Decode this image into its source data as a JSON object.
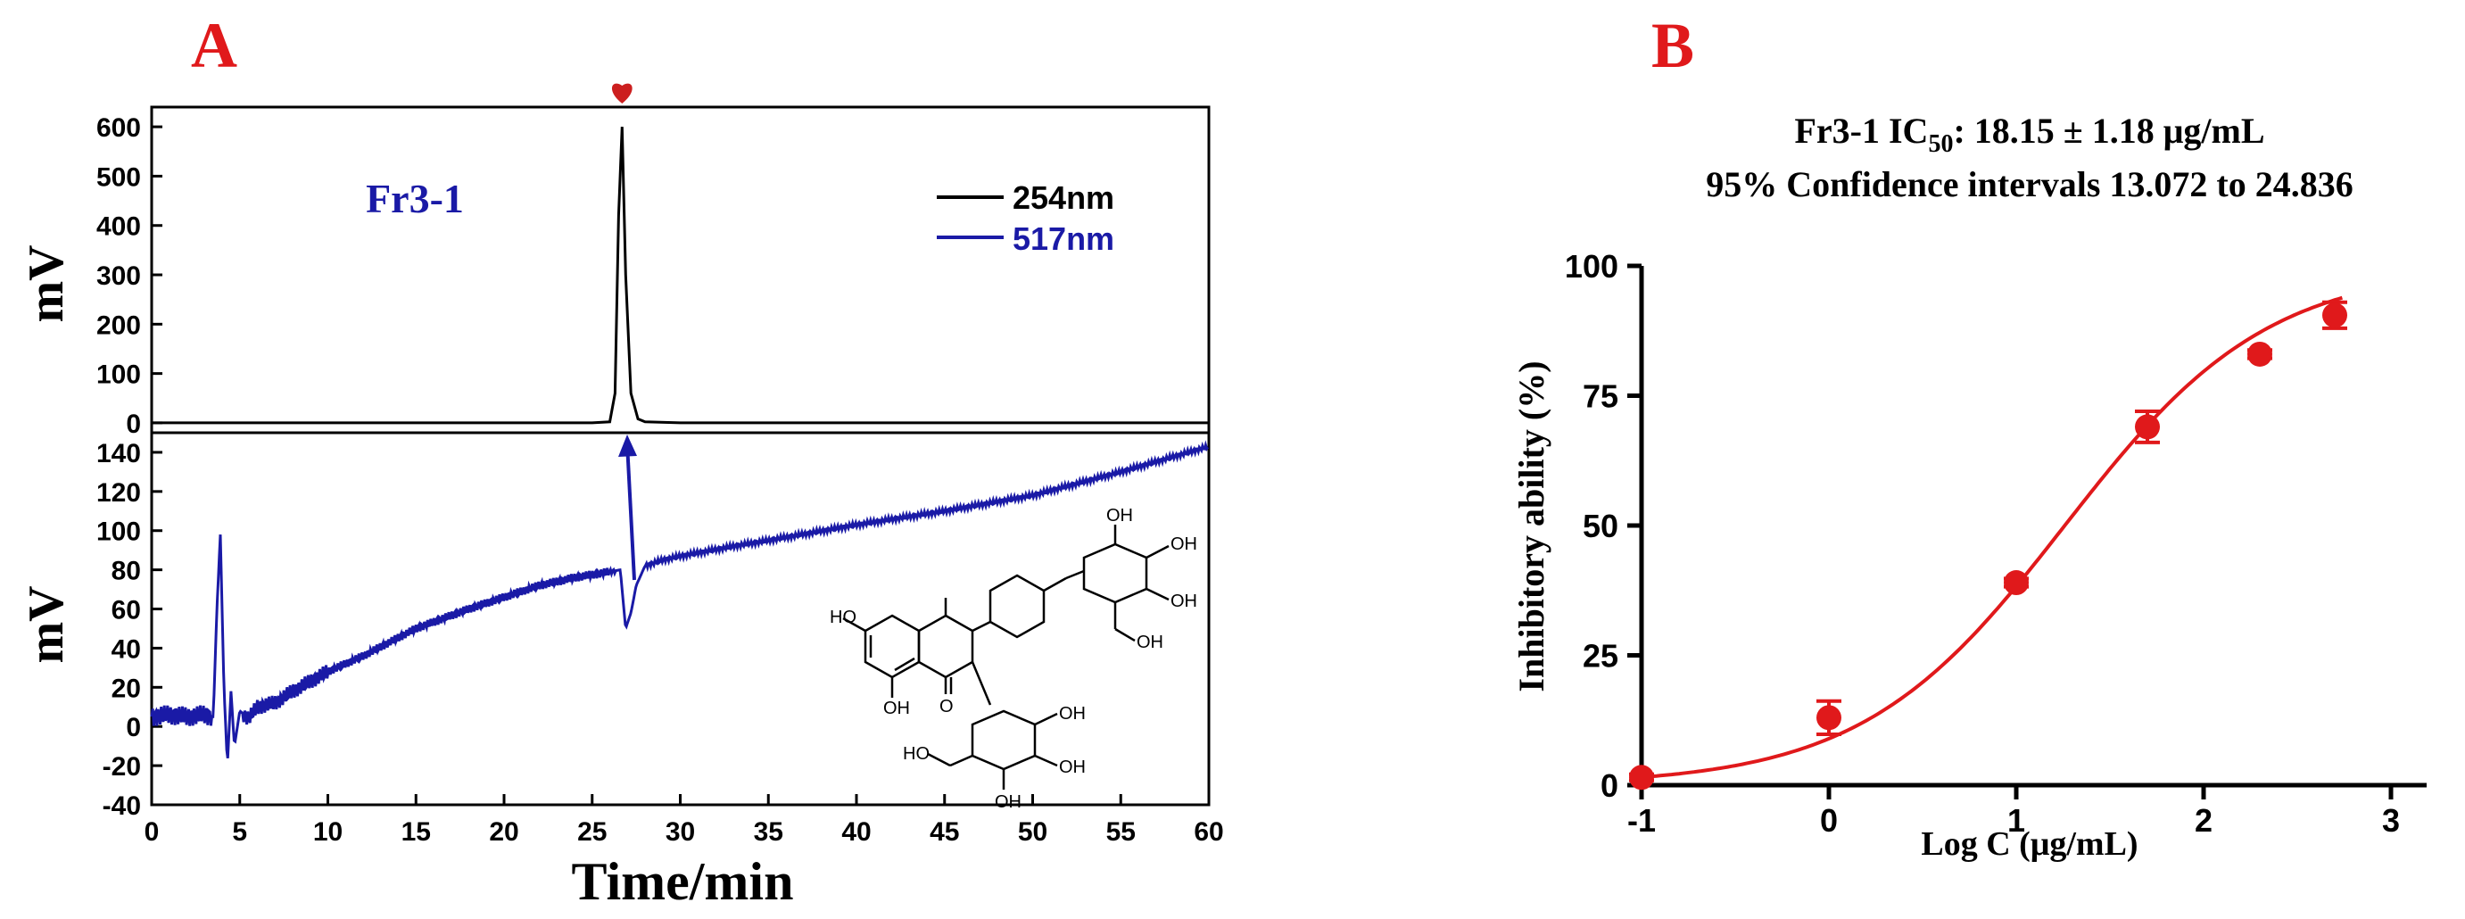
{
  "chart_data": [
    {
      "type": "line",
      "panel_label": "A",
      "annotation": "Fr3-1",
      "xlabel": "Time/min",
      "x_ticks": [
        0,
        5,
        10,
        15,
        20,
        25,
        30,
        35,
        40,
        45,
        50,
        55,
        60
      ],
      "xlim": [
        0,
        60
      ],
      "panels": [
        {
          "ylabel": "mV",
          "ylim": [
            -20,
            640
          ],
          "y_ticks": [
            0,
            100,
            200,
            300,
            400,
            500,
            600
          ],
          "series": [
            {
              "name": "254nm",
              "color": "#000000",
              "x": [
                0,
                10,
                20,
                25,
                26,
                26.3,
                26.5,
                26.7,
                26.9,
                27.2,
                27.6,
                28,
                30,
                40,
                50,
                60
              ],
              "y": [
                0,
                0,
                0,
                0,
                2,
                60,
                420,
                600,
                300,
                60,
                8,
                2,
                0,
                0,
                0,
                0
              ]
            }
          ]
        },
        {
          "ylabel": "mV",
          "ylim": [
            -40,
            150
          ],
          "y_ticks": [
            -40,
            -20,
            0,
            20,
            40,
            60,
            80,
            100,
            120,
            140
          ],
          "series": [
            {
              "name": "517nm",
              "color": "#1a1aa6",
              "x": [
                0,
                1,
                2,
                3,
                3.5,
                3.7,
                3.9,
                4.1,
                4.3,
                4.5,
                4.7,
                5,
                5.5,
                6,
                7,
                8,
                10,
                12,
                15,
                18,
                20,
                22,
                24,
                26,
                26.6,
                26.9,
                27.2,
                27.5,
                28,
                29,
                30,
                33,
                35,
                40,
                45,
                50,
                55,
                60
              ],
              "y": [
                5,
                6,
                5,
                6,
                5,
                60,
                98,
                20,
                -20,
                18,
                -10,
                8,
                4,
                10,
                12,
                18,
                28,
                36,
                50,
                60,
                66,
                72,
                76,
                79,
                80,
                50,
                58,
                72,
                82,
                85,
                87,
                92,
                95,
                103,
                110,
                118,
                130,
                143
              ]
            }
          ]
        }
      ],
      "peak_marker": "heart",
      "peak_marker_color": "#cc1f1f",
      "peak_marker_x": 26.7,
      "inset": "chemical-structure"
    },
    {
      "type": "scatter",
      "panel_label": "B",
      "title_line1_prefix": "Fr3-1 IC",
      "title_line1_sub": "50",
      "title_line1_suffix": ": 18.15 ± 1.18 μg/mL",
      "title_line2": "95% Confidence intervals 13.072 to 24.836",
      "xlabel": "Log C (μg/mL)",
      "ylabel": "Inhibitory ability (%)",
      "xlim": [
        -1,
        3
      ],
      "ylim": [
        0,
        100
      ],
      "x_ticks": [
        -1,
        0,
        1,
        2,
        3
      ],
      "y_ticks": [
        0,
        25,
        50,
        75,
        100
      ],
      "color": "#e0191b",
      "points": {
        "x": [
          -1,
          0,
          1,
          1.7,
          2.3,
          2.7
        ],
        "y": [
          1.5,
          13,
          39,
          69,
          83,
          90.5
        ],
        "err": [
          0.6,
          3.2,
          0.8,
          3.0,
          0.8,
          2.5
        ]
      },
      "fit": {
        "model": "four-parameter-logistic",
        "bottom": 0,
        "top": 100,
        "logIC50": 1.259,
        "hill": 0.8
      }
    }
  ]
}
